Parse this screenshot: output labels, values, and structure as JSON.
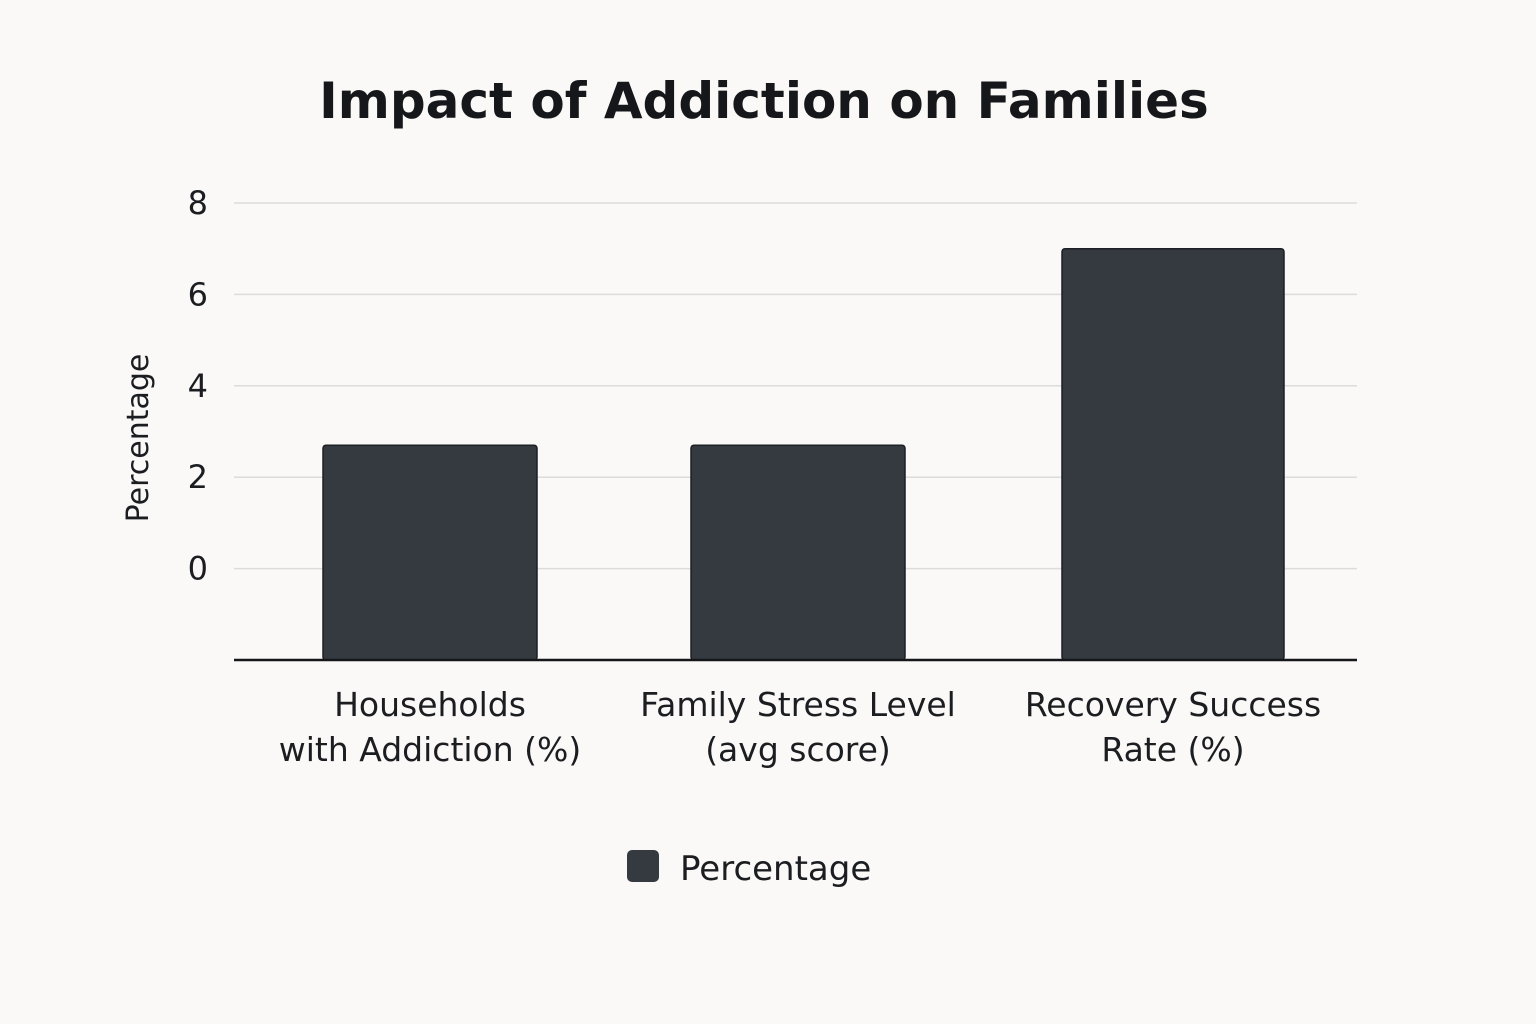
{
  "chart_data": {
    "type": "bar",
    "title": "Impact of Addiction on Families",
    "ylabel": "Percentage",
    "xlabel": "",
    "categories": [
      [
        "Households",
        "with Addiction (%)"
      ],
      [
        "Family Stress Level",
        "(avg score)"
      ],
      [
        "Recovery Success",
        "Rate (%)"
      ]
    ],
    "series": [
      {
        "name": "Percentage",
        "values": [
          2.7,
          2.7,
          7.0
        ],
        "color": "#343a40"
      }
    ],
    "yticks": [
      0,
      2,
      4,
      6,
      8
    ],
    "ylim": [
      -2,
      8
    ],
    "grid": true,
    "legend": "bottom-center"
  }
}
